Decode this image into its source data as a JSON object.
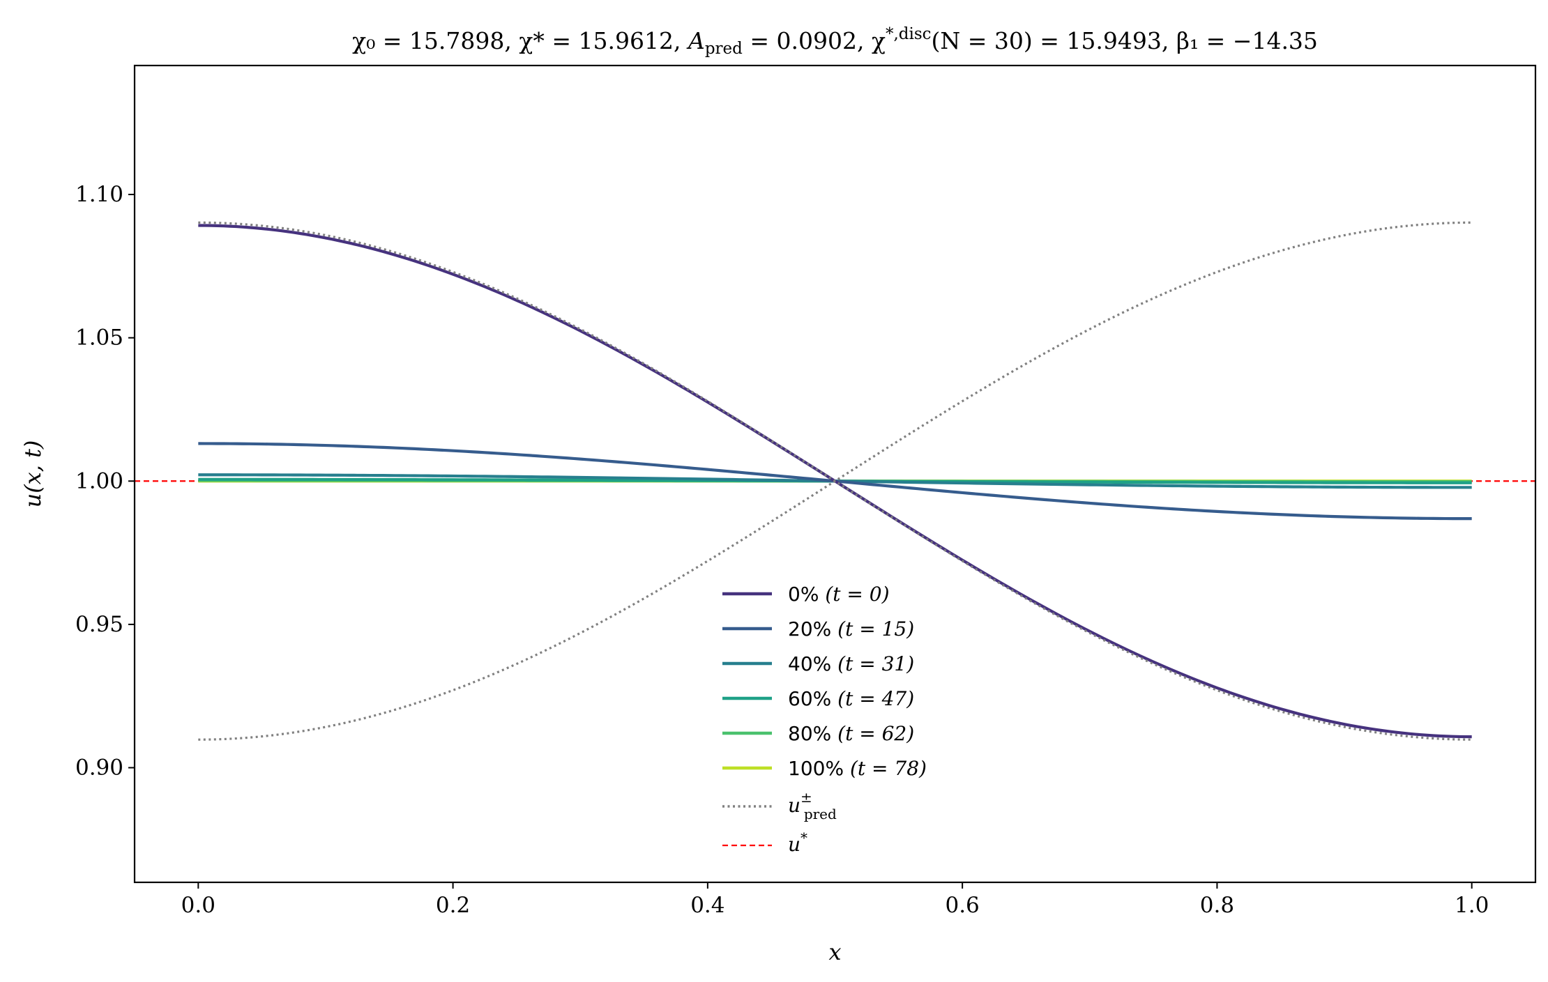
{
  "chart_data": {
    "type": "line",
    "title": "χ₀ = 15.7898,  χ* = 15.9612,  A_pred = 0.0902,  χ*,disc(N = 30) = 15.9493,  β₁ = −14.35",
    "title_parts": {
      "chi0": "χ₀ = 15.7898,",
      "chistar": "χ* = 15.9612,",
      "apred": "A",
      "apred_sub": "pred",
      "apred_val": " = 0.0902,",
      "chidisc": "χ",
      "chidisc_sup": "*,disc",
      "chidisc_val": "(N = 30) = 15.9493,",
      "beta": "β₁ = −14.35"
    },
    "xlabel": "x",
    "ylabel": "u(x, t)",
    "xlim": [
      -0.05,
      1.05
    ],
    "ylim": [
      0.86,
      1.145
    ],
    "xticks": [
      0.0,
      0.2,
      0.4,
      0.6,
      0.8,
      1.0
    ],
    "xtick_labels": [
      "0.0",
      "0.2",
      "0.4",
      "0.6",
      "0.8",
      "1.0"
    ],
    "yticks": [
      0.9,
      0.95,
      1.0,
      1.05,
      1.1
    ],
    "ytick_labels": [
      "0.90",
      "0.95",
      "1.00",
      "1.05",
      "1.10"
    ],
    "grid": false,
    "legend_position": "lower-center",
    "equilibrium": {
      "name": "u*",
      "value": 1.0,
      "color": "#ff0000",
      "style": "dashed"
    },
    "prediction_amplitude": 0.0902,
    "series": [
      {
        "name": "0% (t = 0)",
        "label_pct": "0%",
        "label_t": "(t = 0)",
        "amplitude": 0.0892,
        "color": "#46327e"
      },
      {
        "name": "20% (t = 15)",
        "label_pct": "20%",
        "label_t": "(t = 15)",
        "amplitude": 0.0131,
        "color": "#365c8d"
      },
      {
        "name": "40% (t = 31)",
        "label_pct": "40%",
        "label_t": "(t = 31)",
        "amplitude": 0.0022,
        "color": "#277f8e"
      },
      {
        "name": "60% (t = 47)",
        "label_pct": "60%",
        "label_t": "(t = 47)",
        "amplitude": 0.0006,
        "color": "#1fa187"
      },
      {
        "name": "80% (t = 62)",
        "label_pct": "80%",
        "label_t": "(t = 62)",
        "amplitude": 0.0002,
        "color": "#4ac16d"
      },
      {
        "name": "100% (t = 78)",
        "label_pct": "100%",
        "label_t": "(t = 78)",
        "amplitude": 0.0,
        "color": "#bddf26"
      }
    ],
    "legend_pred_label": "u±pred",
    "legend_ustar_label": "u*",
    "pred_color": "#808080"
  }
}
